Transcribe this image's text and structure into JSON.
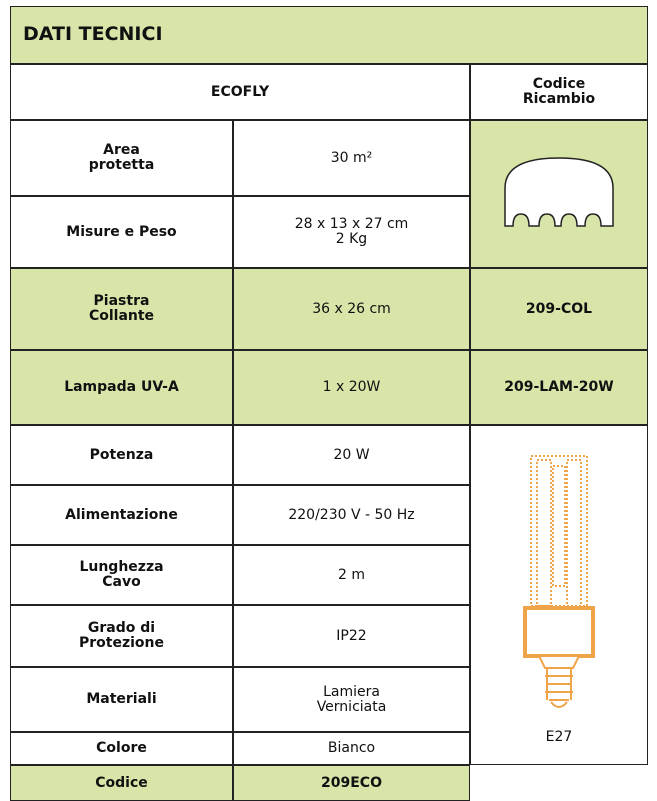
{
  "header": {
    "title": "DATI TECNICI"
  },
  "table": {
    "columns": [
      "ECOFLY",
      "Codice\nRicambio"
    ],
    "rows": [
      {
        "label": "Area\nprotetta",
        "value": "30 m²"
      },
      {
        "label": "Misure e Peso",
        "value": "28 x 13 x 27 cm\n2 Kg"
      },
      {
        "label": "Piastra\nCollante",
        "value": "36 x 26 cm",
        "code": "209-COL"
      },
      {
        "label": "Lampada UV-A",
        "value": "1 x 20W",
        "code": "209-LAM-20W"
      },
      {
        "label": "Potenza",
        "value": "20 W"
      },
      {
        "label": "Alimentazione",
        "value": "220/230 V - 50 Hz"
      },
      {
        "label": "Lunghezza\nCavo",
        "value": "2 m"
      },
      {
        "label": "Grado di\nProtezione",
        "value": "IP22"
      },
      {
        "label": "Materiali",
        "value": "Lamiera\nVerniciata"
      },
      {
        "label": "Colore",
        "value": "Bianco"
      },
      {
        "label": "Codice",
        "value": "209ECO"
      }
    ],
    "lamp_socket": "E27"
  }
}
